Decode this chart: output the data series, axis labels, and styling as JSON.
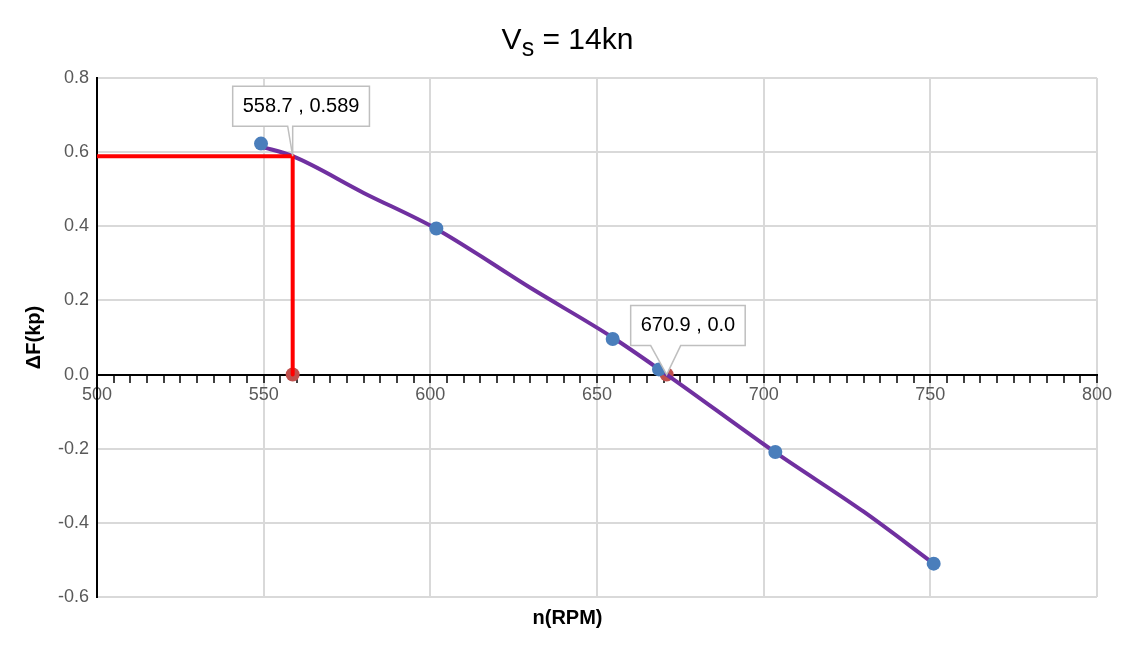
{
  "chart_data": {
    "type": "scatter",
    "title": "V$_{s}$ = 14kn",
    "xlabel": "n(RPM)",
    "ylabel": "ΔF(kp)",
    "xlim": [
      500,
      800
    ],
    "xticks": [
      500,
      {
        "value": 505,
        "label": null
      },
      {
        "value": 510,
        "label": null
      },
      {
        "value": 515,
        "label": null
      },
      {
        "value": 520,
        "label": null
      },
      {
        "value": 525,
        "label": null
      },
      {
        "value": 530,
        "label": null
      },
      {
        "value": 535,
        "label": null
      },
      {
        "value": 540,
        "label": null
      },
      {
        "value": 545,
        "label": null
      },
      550,
      {
        "value": 555,
        "label": null
      },
      {
        "value": 560,
        "label": null
      },
      {
        "value": 565,
        "label": null
      },
      {
        "value": 570,
        "label": null
      },
      {
        "value": 575,
        "label": null
      },
      {
        "value": 580,
        "label": null
      },
      {
        "value": 585,
        "label": null
      },
      {
        "value": 590,
        "label": null
      },
      {
        "value": 595,
        "label": null
      },
      600,
      {
        "value": 605,
        "label": null
      },
      {
        "value": 610,
        "label": null
      },
      {
        "value": 615,
        "label": null
      },
      {
        "value": 620,
        "label": null
      },
      {
        "value": 625,
        "label": null
      },
      {
        "value": 630,
        "label": null
      },
      {
        "value": 635,
        "label": null
      },
      {
        "value": 640,
        "label": null
      },
      {
        "value": 645,
        "label": null
      },
      650,
      {
        "value": 655,
        "label": null
      },
      {
        "value": 660,
        "label": null
      },
      {
        "value": 665,
        "label": null
      },
      {
        "value": 670,
        "label": null
      },
      {
        "value": 675,
        "label": null
      },
      {
        "value": 680,
        "label": null
      },
      {
        "value": 685,
        "label": null
      },
      {
        "value": 690,
        "label": null
      },
      {
        "value": 695,
        "label": null
      },
      700,
      {
        "value": 705,
        "label": null
      },
      {
        "value": 710,
        "label": null
      },
      {
        "value": 715,
        "label": null
      },
      {
        "value": 720,
        "label": null
      },
      {
        "value": 725,
        "label": null
      },
      {
        "value": 730,
        "label": null
      },
      {
        "value": 735,
        "label": null
      },
      {
        "value": 740,
        "label": null
      },
      {
        "value": 745,
        "label": null
      },
      750,
      {
        "value": 755,
        "label": null
      },
      {
        "value": 760,
        "label": null
      },
      {
        "value": 765,
        "label": null
      },
      {
        "value": 770,
        "label": null
      },
      {
        "value": 775,
        "label": null
      },
      {
        "value": 780,
        "label": null
      },
      {
        "value": 785,
        "label": null
      },
      {
        "value": 790,
        "label": null
      },
      {
        "value": 795,
        "label": null
      },
      800
    ],
    "ylim": [
      -0.6,
      0.8
    ],
    "yticks": [
      -0.6,
      -0.4,
      -0.2,
      {
        "value": 0,
        "label": "0.0"
      },
      0.2,
      0.4,
      0.6,
      0.8
    ],
    "grid": true,
    "series": [
      {
        "type": "line",
        "marker": "none",
        "color": "#ff0000",
        "x": [
          500,
          558.7,
          558.7
        ],
        "values": [
          0.589,
          0.589,
          0
        ]
      },
      {
        "type": "scatter",
        "marker": "circle",
        "color": "#4a7ebb",
        "x": [
          549.2,
          601.8,
          654.7,
          668.6,
          703.5,
          751.0
        ],
        "values": [
          0.623,
          0.394,
          0.096,
          0.014,
          -0.209,
          -0.51
        ]
      },
      {
        "type": "line",
        "marker": "none",
        "color": "#7030a0",
        "x": [
          549.2,
          558.7,
          580,
          601.8,
          630,
          654.7,
          670.9,
          703.5,
          730,
          751.0
        ],
        "values": [
          0.615,
          0.589,
          0.49,
          0.393,
          0.234,
          0.1,
          0.0,
          -0.21,
          -0.37,
          -0.51
        ]
      },
      {
        "type": "scatter",
        "marker": "circle",
        "color": "#c0504d",
        "x": [
          558.7,
          670.9
        ],
        "values": [
          0,
          0
        ]
      }
    ],
    "annotations": [
      {
        "text": "558.7 , 0.589",
        "x": 558.7,
        "y": 0.589
      },
      {
        "text": "670.9 , 0.0",
        "x": 670.9,
        "y": 0
      }
    ]
  }
}
